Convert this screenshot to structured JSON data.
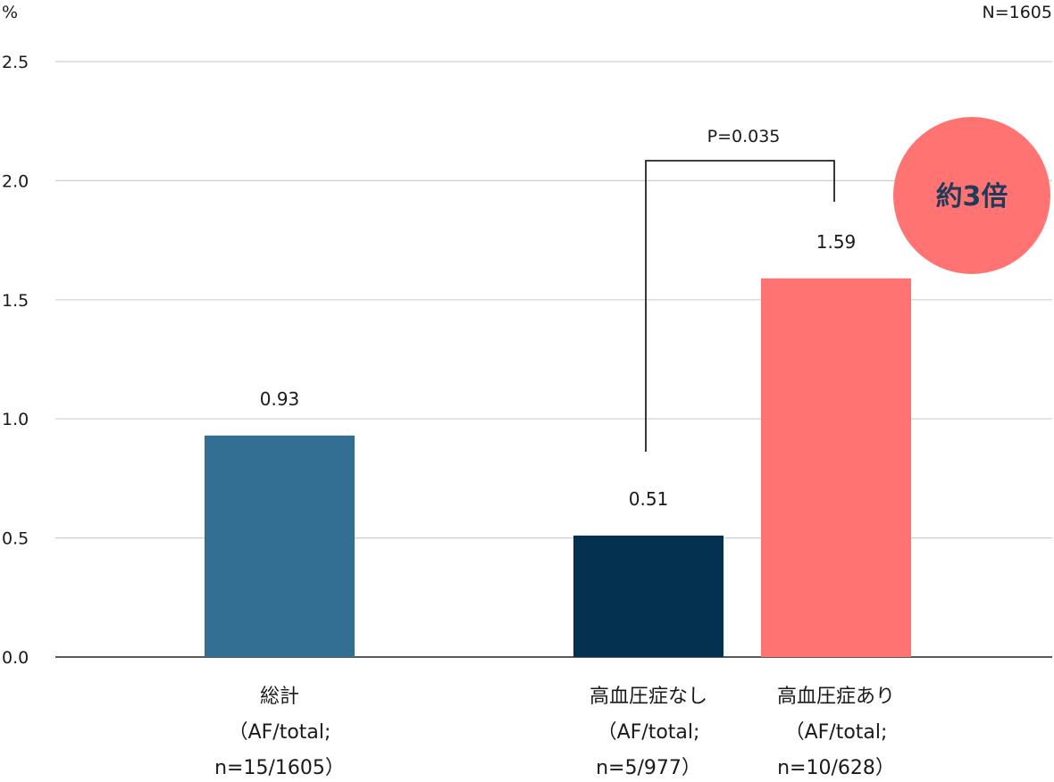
{
  "chart_data": {
    "type": "bar",
    "y_unit": "%",
    "sample_note": "N=1605",
    "ylim": [
      0,
      2.5
    ],
    "yticks": [
      "0.0",
      "0.5",
      "1.0",
      "1.5",
      "2.0",
      "2.5"
    ],
    "grid": true,
    "categories": [
      {
        "lines": [
          "総計",
          "（AF/total;",
          "n=15/1605）"
        ],
        "value": 0.93,
        "label": "0.93",
        "color": "#336f92"
      },
      {
        "lines": [
          "高血圧症なし",
          "（AF/total;",
          "n=5/977）"
        ],
        "value": 0.51,
        "label": "0.51",
        "color": "#04314f"
      },
      {
        "lines": [
          "高血圧症あり",
          "（AF/total;",
          "n=10/628）"
        ],
        "value": 1.59,
        "label": "1.59",
        "color": "#ff7472"
      }
    ],
    "significance": {
      "from": 1,
      "to": 2,
      "label": "P=0.035"
    },
    "badge": {
      "label": "約3倍",
      "color": "#ff7472"
    }
  }
}
